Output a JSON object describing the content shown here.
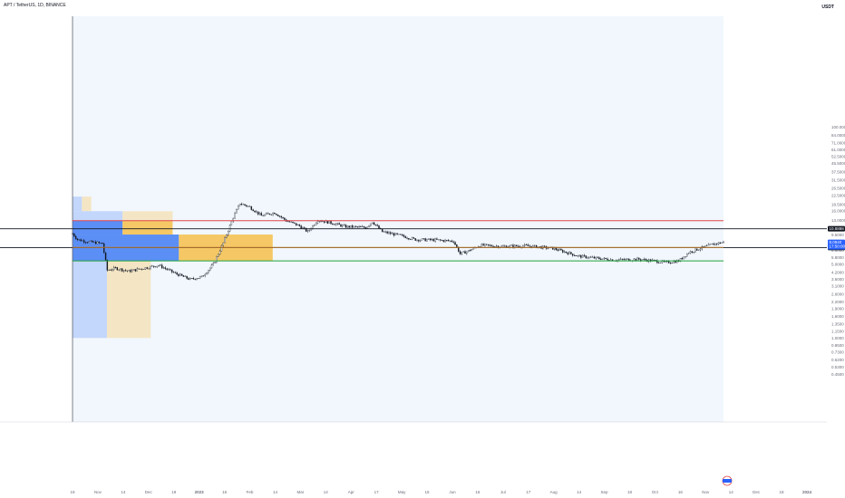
{
  "header": {
    "title": "APT / TetherUS, 1D, BINANCE",
    "currency": "USDT"
  },
  "colors": {
    "background_zone": "#f1f7fd",
    "candles": "#131722",
    "resistance": "#e0464a",
    "support": "#22a33b",
    "mid_level": "#c07b2a",
    "black_level": "#131722",
    "profile_blue": "#5b8ff5",
    "profile_blue_light": "#c3d6fb",
    "profile_yellow": "#f5c865",
    "profile_yellow_light": "#f4e6c4"
  },
  "chart_data": {
    "type": "candlestick",
    "title": "APT / TetherUS, 1D, BINANCE",
    "y_scale": "log",
    "y_ticks": [
      "100.0000",
      "84.0000",
      "71.0000",
      "61.0000",
      "52.5000",
      "45.5000",
      "37.5000",
      "31.5000",
      "26.5000",
      "22.5000",
      "18.5000",
      "16.0000",
      "13.0000",
      "11.0000",
      "9.5000",
      "8.0000",
      "6.8000",
      "5.8000",
      "5.0000",
      "4.2000",
      "3.6000",
      "3.1000",
      "2.6000",
      "2.2000",
      "1.9000",
      "1.6000",
      "1.3500",
      "1.1500",
      "1.0000",
      "0.8500",
      "0.7300",
      "0.6200",
      "0.5300",
      "0.4500"
    ],
    "x_ticks": [
      "19",
      "Nov",
      "14",
      "Dec",
      "19",
      "2023",
      "16",
      "Feb",
      "14",
      "Mar",
      "14",
      "Apr",
      "17",
      "May",
      "15",
      "Jun",
      "16",
      "Jul",
      "17",
      "Aug",
      "14",
      "Sep",
      "18",
      "Oct",
      "16",
      "Nov",
      "14",
      "Dec",
      "18",
      "2024"
    ],
    "levels": [
      {
        "price": 13.0,
        "color_key": "resistance"
      },
      {
        "price": 10.8888,
        "color_key": "black_level",
        "tag": "10.8888"
      },
      {
        "price": 7.2201,
        "color_key": "black_level",
        "tag": "7.2201"
      },
      {
        "price": 7.25,
        "color_key": "mid_level"
      },
      {
        "price": 5.4,
        "color_key": "support"
      }
    ],
    "price_tag": {
      "price": "8.0940",
      "countdown": "17:50:00"
    },
    "volume_profile": [
      {
        "top": 22.0,
        "bottom": 16.0,
        "blue": 3,
        "yellow": 3
      },
      {
        "top": 16.0,
        "bottom": 13.0,
        "blue": 16,
        "yellow": 16
      },
      {
        "top": 13.0,
        "bottom": 9.6,
        "blue": 16,
        "yellow": 16
      },
      {
        "top": 9.6,
        "bottom": 5.4,
        "blue": 34,
        "yellow": 30
      },
      {
        "top": 5.4,
        "bottom": 1.0,
        "blue": 11,
        "yellow": 14
      }
    ],
    "series": [
      {
        "date": "2022-10-19",
        "close": 9.8
      },
      {
        "date": "2022-10-22",
        "close": 8.6
      },
      {
        "date": "2022-10-28",
        "close": 8.2
      },
      {
        "date": "2022-11-06",
        "close": 7.9
      },
      {
        "date": "2022-11-09",
        "close": 4.4
      },
      {
        "date": "2022-11-14",
        "close": 4.6
      },
      {
        "date": "2022-11-22",
        "close": 4.3
      },
      {
        "date": "2022-12-01",
        "close": 4.6
      },
      {
        "date": "2022-12-10",
        "close": 4.9
      },
      {
        "date": "2022-12-20",
        "close": 4.1
      },
      {
        "date": "2022-12-29",
        "close": 3.6
      },
      {
        "date": "2023-01-05",
        "close": 3.8
      },
      {
        "date": "2023-01-12",
        "close": 5.0
      },
      {
        "date": "2023-01-18",
        "close": 8.0
      },
      {
        "date": "2023-01-24",
        "close": 14.0
      },
      {
        "date": "2023-01-28",
        "close": 19.0
      },
      {
        "date": "2023-02-03",
        "close": 17.5
      },
      {
        "date": "2023-02-10",
        "close": 14.5
      },
      {
        "date": "2023-02-18",
        "close": 15.5
      },
      {
        "date": "2023-02-25",
        "close": 13.0
      },
      {
        "date": "2023-03-05",
        "close": 11.6
      },
      {
        "date": "2023-03-10",
        "close": 10.2
      },
      {
        "date": "2023-03-16",
        "close": 13.2
      },
      {
        "date": "2023-03-24",
        "close": 12.4
      },
      {
        "date": "2023-04-02",
        "close": 11.4
      },
      {
        "date": "2023-04-14",
        "close": 11.2
      },
      {
        "date": "2023-04-18",
        "close": 12.7
      },
      {
        "date": "2023-04-24",
        "close": 10.2
      },
      {
        "date": "2023-05-06",
        "close": 9.3
      },
      {
        "date": "2023-05-14",
        "close": 8.6
      },
      {
        "date": "2023-05-27",
        "close": 8.5
      },
      {
        "date": "2023-06-06",
        "close": 8.3
      },
      {
        "date": "2023-06-10",
        "close": 6.3
      },
      {
        "date": "2023-06-15",
        "close": 6.7
      },
      {
        "date": "2023-06-22",
        "close": 7.6
      },
      {
        "date": "2023-07-05",
        "close": 7.4
      },
      {
        "date": "2023-07-20",
        "close": 7.5
      },
      {
        "date": "2023-08-05",
        "close": 7.1
      },
      {
        "date": "2023-08-16",
        "close": 6.3
      },
      {
        "date": "2023-08-20",
        "close": 6.0
      },
      {
        "date": "2023-09-01",
        "close": 5.7
      },
      {
        "date": "2023-09-12",
        "close": 5.5
      },
      {
        "date": "2023-09-25",
        "close": 5.6
      },
      {
        "date": "2023-10-05",
        "close": 5.4
      },
      {
        "date": "2023-10-12",
        "close": 5.2
      },
      {
        "date": "2023-10-20",
        "close": 5.4
      },
      {
        "date": "2023-10-26",
        "close": 6.5
      },
      {
        "date": "2023-11-02",
        "close": 7.1
      },
      {
        "date": "2023-11-10",
        "close": 7.8
      },
      {
        "date": "2023-11-16",
        "close": 8.1
      }
    ]
  }
}
